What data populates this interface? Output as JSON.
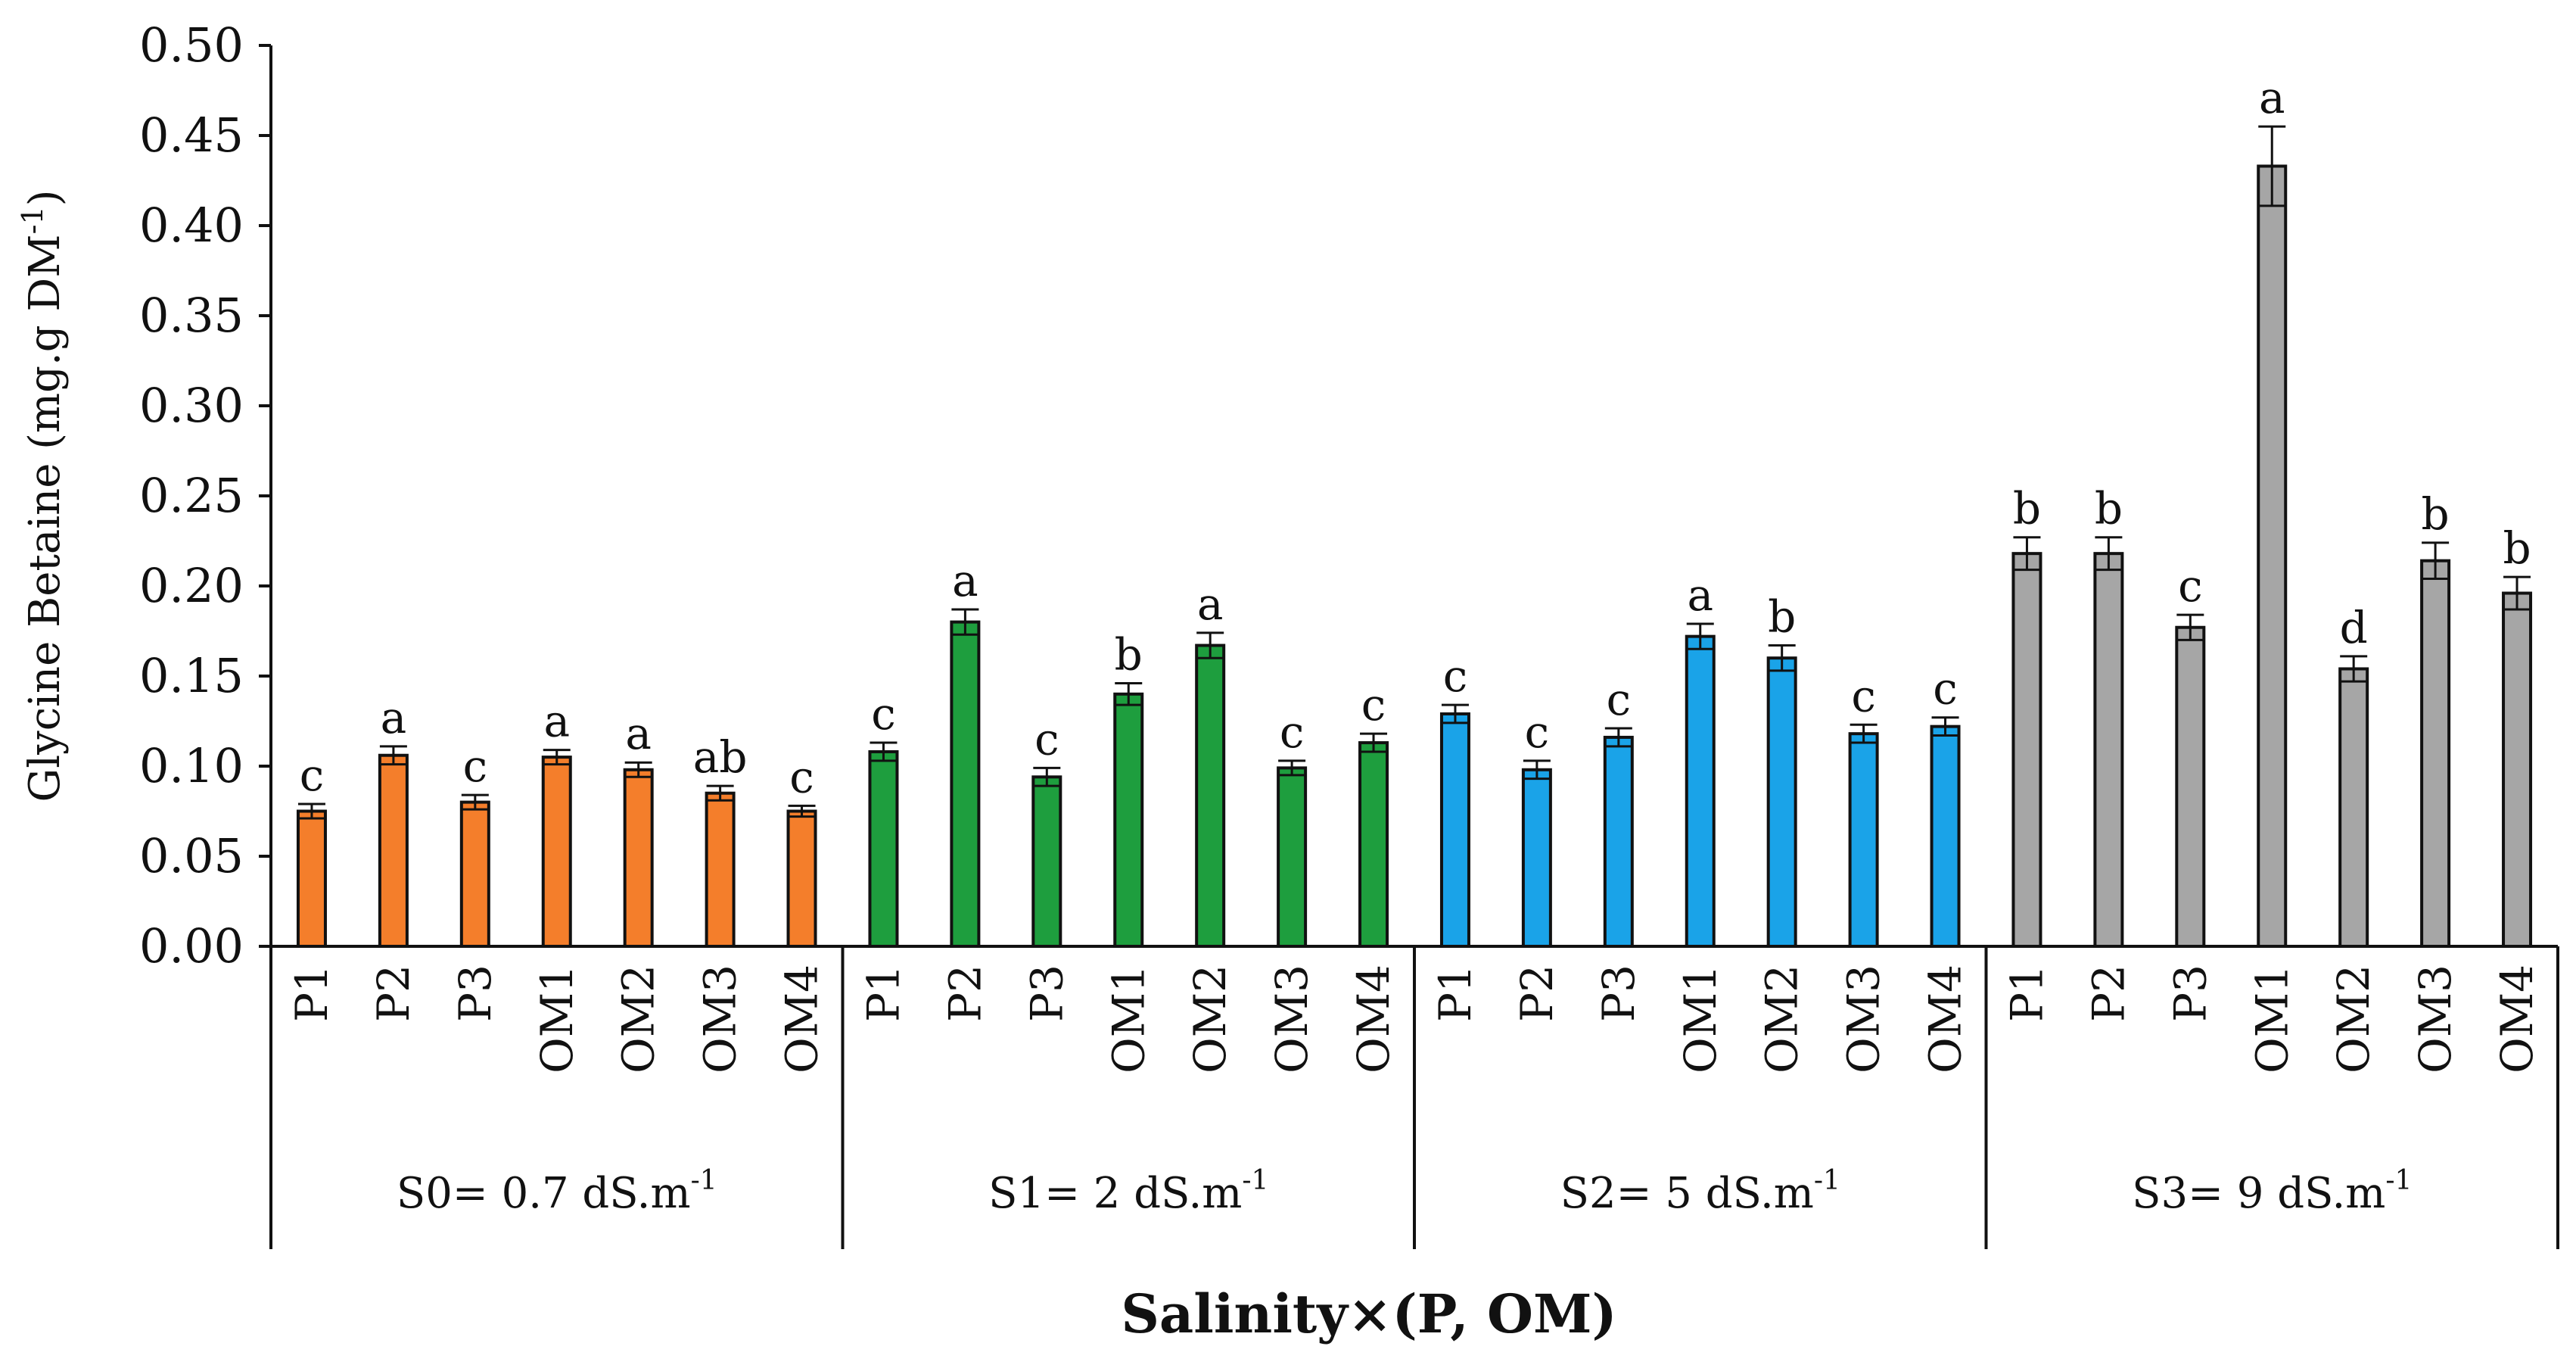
{
  "chart_data": {
    "type": "bar",
    "xlabel": "Salinity×(P, OM)",
    "ylabel": "Glycine Betaine (mg.g DM",
    "ylabel_superscript": "-1",
    "ylabel_close": ")",
    "ylim": [
      0,
      0.5
    ],
    "y_ticks": [
      "0.00",
      "0.05",
      "0.10",
      "0.15",
      "0.20",
      "0.25",
      "0.30",
      "0.35",
      "0.40",
      "0.45",
      "0.50"
    ],
    "grid": false,
    "groups": [
      {
        "label": "S0= 0.7 dS.m",
        "superscript": "-1",
        "color": "#F47E2B",
        "categories": [
          "P1",
          "P2",
          "P3",
          "OM1",
          "OM2",
          "OM3",
          "OM4"
        ],
        "values": [
          0.075,
          0.106,
          0.08,
          0.105,
          0.098,
          0.085,
          0.075
        ],
        "errors": [
          0.004,
          0.005,
          0.004,
          0.004,
          0.004,
          0.004,
          0.003
        ],
        "letters": [
          "c",
          "a",
          "c",
          "a",
          "a",
          "ab",
          "c"
        ]
      },
      {
        "label": "S1= 2 dS.m",
        "superscript": "-1",
        "color": "#1E9E3E",
        "categories": [
          "P1",
          "P2",
          "P3",
          "OM1",
          "OM2",
          "OM3",
          "OM4"
        ],
        "values": [
          0.108,
          0.18,
          0.094,
          0.14,
          0.167,
          0.099,
          0.113
        ],
        "errors": [
          0.005,
          0.007,
          0.005,
          0.006,
          0.007,
          0.004,
          0.005
        ],
        "letters": [
          "c",
          "a",
          "c",
          "b",
          "a",
          "c",
          "c"
        ]
      },
      {
        "label": "S2= 5 dS.m",
        "superscript": "-1",
        "color": "#1AA3E8",
        "categories": [
          "P1",
          "P2",
          "P3",
          "OM1",
          "OM2",
          "OM3",
          "OM4"
        ],
        "values": [
          0.129,
          0.098,
          0.116,
          0.172,
          0.16,
          0.118,
          0.122
        ],
        "errors": [
          0.005,
          0.005,
          0.005,
          0.007,
          0.007,
          0.005,
          0.005
        ],
        "letters": [
          "c",
          "c",
          "c",
          "a",
          "b",
          "c",
          "c"
        ]
      },
      {
        "label": "S3= 9 dS.m",
        "superscript": "-1",
        "color": "#A6A6A6",
        "categories": [
          "P1",
          "P2",
          "P3",
          "OM1",
          "OM2",
          "OM3",
          "OM4"
        ],
        "values": [
          0.218,
          0.218,
          0.177,
          0.433,
          0.154,
          0.214,
          0.196
        ],
        "errors": [
          0.009,
          0.009,
          0.007,
          0.022,
          0.007,
          0.01,
          0.009
        ],
        "letters": [
          "b",
          "b",
          "c",
          "a",
          "d",
          "b",
          "b"
        ]
      }
    ]
  }
}
